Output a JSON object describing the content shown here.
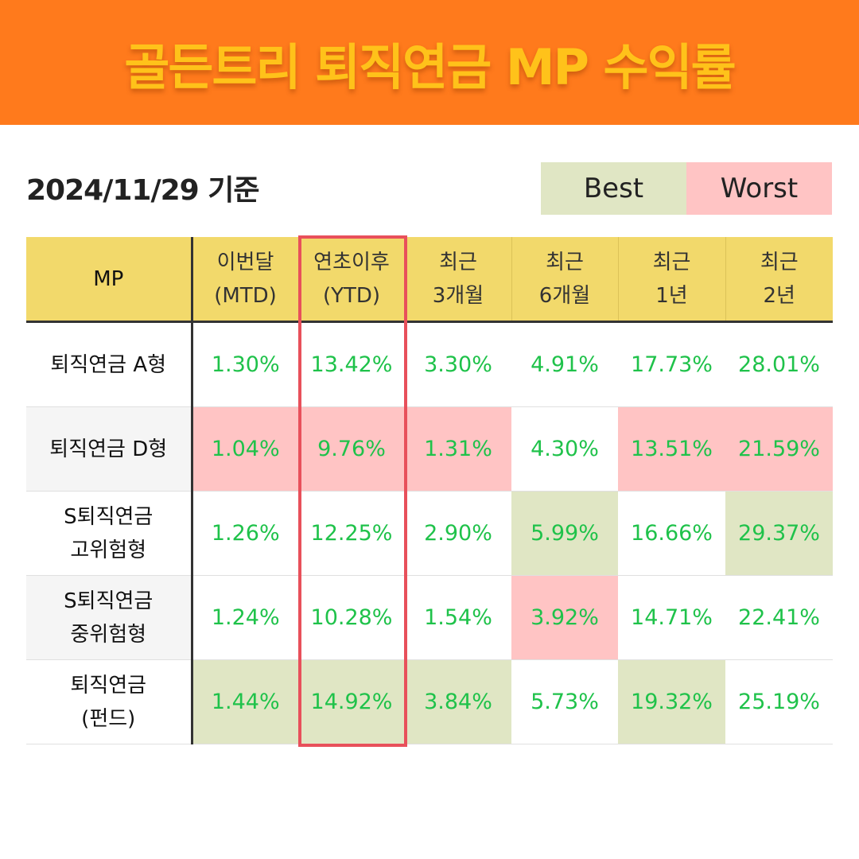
{
  "banner": {
    "title": "골든트리 퇴직연금 MP 수익률"
  },
  "date_label": "2024/11/29 기준",
  "legend": {
    "best": "Best",
    "worst": "Worst"
  },
  "colors": {
    "banner": "#ff7a1c",
    "title": "#ffc21a",
    "best": "#e0e6c4",
    "worst": "#ffc4c4",
    "header": "#f2d96b",
    "value": "#1fc24a",
    "highlight": "#e8505b"
  },
  "table": {
    "headers": [
      {
        "line1": "MP",
        "line2": ""
      },
      {
        "line1": "이번달",
        "line2": "(MTD)"
      },
      {
        "line1": "연초이후",
        "line2": "(YTD)"
      },
      {
        "line1": "최근",
        "line2": "3개월"
      },
      {
        "line1": "최근",
        "line2": "6개월"
      },
      {
        "line1": "최근",
        "line2": "1년"
      },
      {
        "line1": "최근",
        "line2": "2년"
      }
    ],
    "rows": [
      {
        "name1": "퇴직연금 A형",
        "name2": "",
        "values": [
          "1.30%",
          "13.42%",
          "3.30%",
          "4.91%",
          "17.73%",
          "28.01%"
        ],
        "marks": [
          "",
          "",
          "",
          "",
          "",
          ""
        ]
      },
      {
        "name1": "퇴직연금 D형",
        "name2": "",
        "values": [
          "1.04%",
          "9.76%",
          "1.31%",
          "4.30%",
          "13.51%",
          "21.59%"
        ],
        "marks": [
          "worst",
          "worst",
          "worst",
          "",
          "worst",
          "worst"
        ]
      },
      {
        "name1": "S퇴직연금",
        "name2": "고위험형",
        "values": [
          "1.26%",
          "12.25%",
          "2.90%",
          "5.99%",
          "16.66%",
          "29.37%"
        ],
        "marks": [
          "",
          "",
          "",
          "best",
          "",
          "best"
        ]
      },
      {
        "name1": "S퇴직연금",
        "name2": "중위험형",
        "values": [
          "1.24%",
          "10.28%",
          "1.54%",
          "3.92%",
          "14.71%",
          "22.41%"
        ],
        "marks": [
          "",
          "",
          "",
          "worst",
          "",
          ""
        ]
      },
      {
        "name1": "퇴직연금",
        "name2": "(펀드)",
        "values": [
          "1.44%",
          "14.92%",
          "3.84%",
          "5.73%",
          "19.32%",
          "25.19%"
        ],
        "marks": [
          "best",
          "best",
          "best",
          "",
          "best",
          ""
        ]
      }
    ]
  }
}
